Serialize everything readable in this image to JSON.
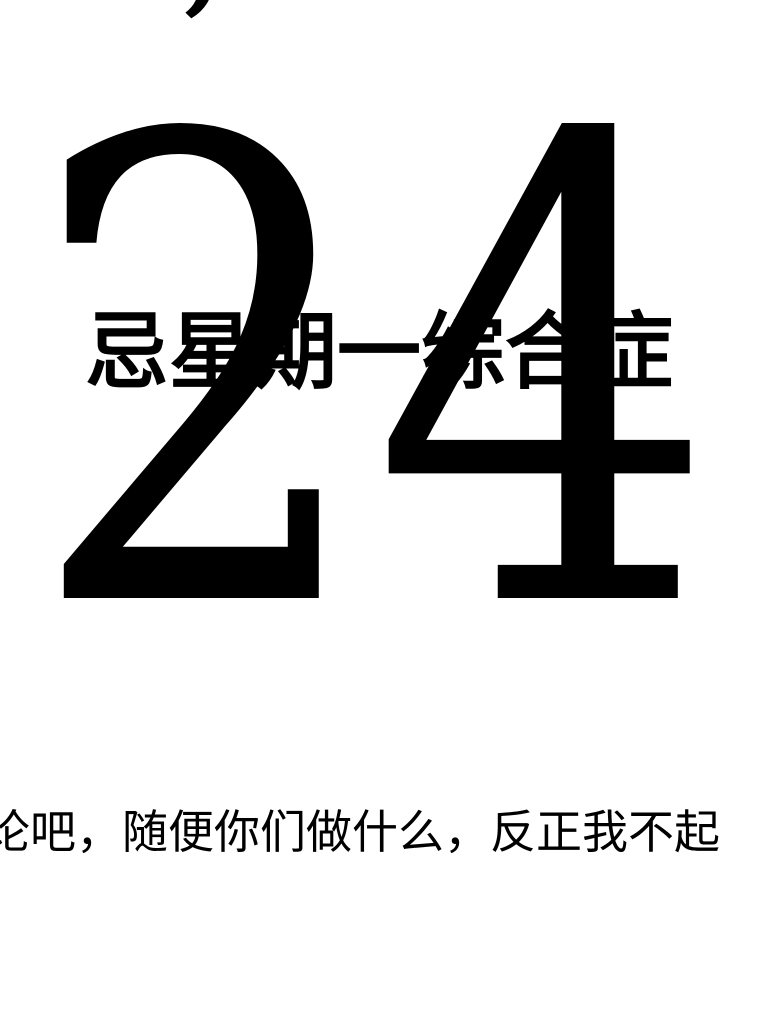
{
  "top_fragment": ",",
  "chapter": {
    "number": "24",
    "title": "忌星期一综合症"
  },
  "body": {
    "line": "论吧，随便你们做什么，反正我不起"
  },
  "colors": {
    "background": "#ffffff",
    "ink": "#000000"
  }
}
